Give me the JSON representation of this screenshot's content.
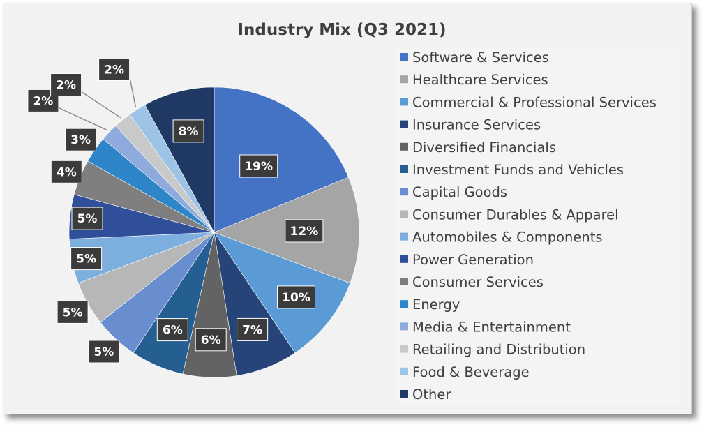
{
  "chart_data": {
    "type": "pie",
    "title": "Industry Mix (Q3 2021)",
    "legend_position": "right",
    "slices": [
      {
        "name": "Software & Services",
        "value": 19,
        "label": "19%",
        "color": "#4472c4"
      },
      {
        "name": "Healthcare Services",
        "value": 12,
        "label": "12%",
        "color": "#a5a5a5"
      },
      {
        "name": "Commercial & Professional Services",
        "value": 10,
        "label": "10%",
        "color": "#5b9bd5"
      },
      {
        "name": "Insurance Services",
        "value": 7,
        "label": "7%",
        "color": "#264478"
      },
      {
        "name": "Diversified Financials",
        "value": 6,
        "label": "6%",
        "color": "#636363"
      },
      {
        "name": "Investment Funds and Vehicles",
        "value": 6,
        "label": "6%",
        "color": "#255e91"
      },
      {
        "name": "Capital Goods",
        "value": 5,
        "label": "5%",
        "color": "#698ed0"
      },
      {
        "name": "Consumer Durables & Apparel",
        "value": 5,
        "label": "5%",
        "color": "#b7b7b7"
      },
      {
        "name": "Automobiles & Components",
        "value": 5,
        "label": "5%",
        "color": "#7cafdd"
      },
      {
        "name": "Power Generation",
        "value": 5,
        "label": "5%",
        "color": "#2f4f9a"
      },
      {
        "name": "Consumer Services",
        "value": 4,
        "label": "4%",
        "color": "#7f7f7f"
      },
      {
        "name": "Energy",
        "value": 3,
        "label": "3%",
        "color": "#2e86c8"
      },
      {
        "name": "Media & Entertainment",
        "value": 2,
        "label": "2%",
        "color": "#8faadc"
      },
      {
        "name": "Retailing and Distribution",
        "value": 2,
        "label": "2%",
        "color": "#c9c9c9"
      },
      {
        "name": "Food & Beverage",
        "value": 2,
        "label": "2%",
        "color": "#9dc3e6"
      },
      {
        "name": "Other",
        "value": 8,
        "label": "8%",
        "color": "#1f3864"
      }
    ]
  }
}
